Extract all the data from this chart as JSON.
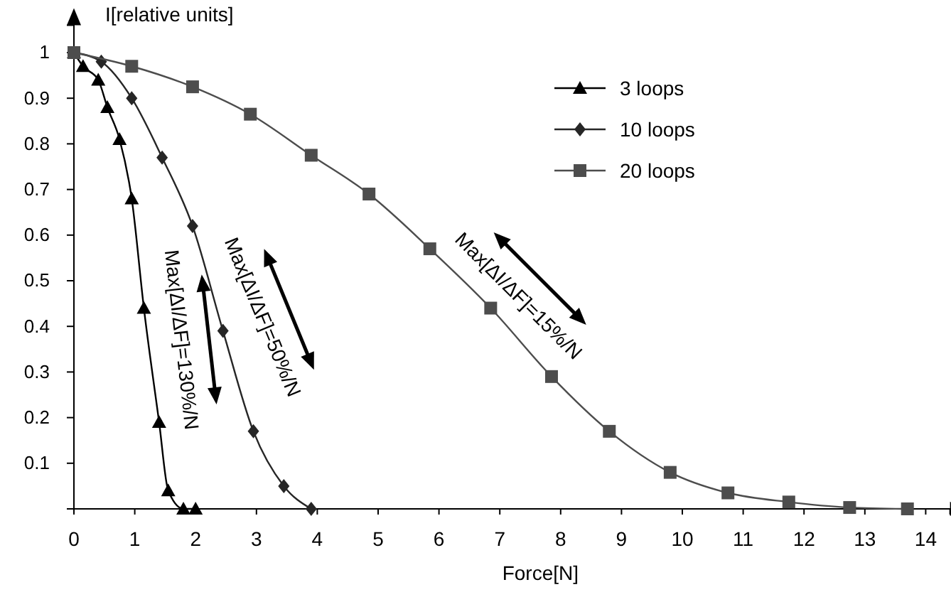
{
  "chart_data": {
    "type": "line",
    "xlabel": "Force[N]",
    "ylabel": "I[relative units]",
    "xlim": [
      0,
      14.4
    ],
    "ylim": [
      0,
      1.06
    ],
    "xticks": [
      0,
      1,
      2,
      3,
      4,
      5,
      6,
      7,
      8,
      9,
      10,
      11,
      12,
      13,
      14
    ],
    "yticks": [
      0.1,
      0.2,
      0.3,
      0.4,
      0.5,
      0.6,
      0.7,
      0.8,
      0.9,
      1
    ],
    "grid": false,
    "legend": "top right",
    "line_style": "solid",
    "series": [
      {
        "name": "3 loops",
        "color": "#000000",
        "marker": "triangle",
        "x": [
          0,
          0.15,
          0.4,
          0.55,
          0.75,
          0.95,
          1.15,
          1.4,
          1.55,
          1.8,
          2.0
        ],
        "values": [
          1,
          0.97,
          0.94,
          0.88,
          0.81,
          0.68,
          0.44,
          0.19,
          0.04,
          0,
          0
        ]
      },
      {
        "name": "10 loops",
        "color": "#262626",
        "marker": "diamond",
        "x": [
          0,
          0.45,
          0.95,
          1.45,
          1.95,
          2.45,
          2.95,
          3.45,
          3.9
        ],
        "values": [
          1,
          0.98,
          0.9,
          0.77,
          0.62,
          0.39,
          0.17,
          0.05,
          0
        ]
      },
      {
        "name": "20 loops",
        "color": "#4d4d4d",
        "marker": "square",
        "x": [
          0,
          0.95,
          1.95,
          2.9,
          3.9,
          4.85,
          5.85,
          6.85,
          7.85,
          8.8,
          9.8,
          10.75,
          11.75,
          12.75,
          13.7
        ],
        "values": [
          1,
          0.97,
          0.925,
          0.865,
          0.775,
          0.69,
          0.57,
          0.44,
          0.29,
          0.17,
          0.08,
          0.035,
          0.015,
          0.003,
          0
        ]
      }
    ],
    "annotations": [
      "Max[ΔI/ΔF]=130%/N",
      "Max[ΔI/ΔF]=50%/N",
      "Max[ΔI/ΔF]=15%/N"
    ]
  }
}
